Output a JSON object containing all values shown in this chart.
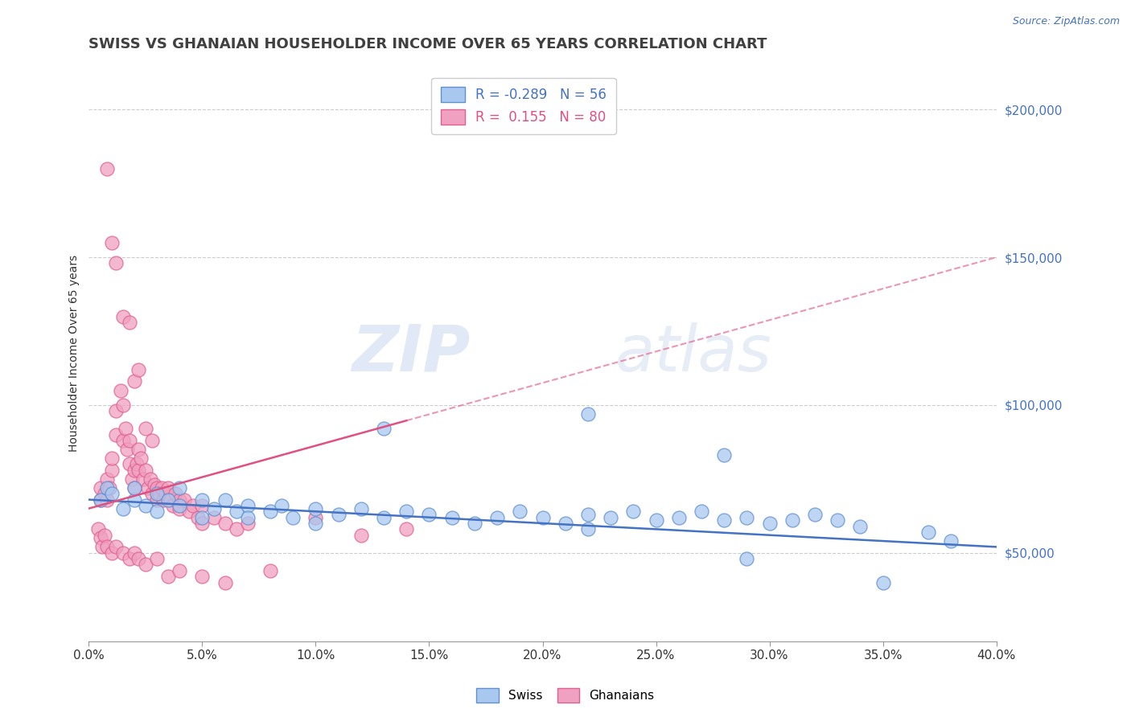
{
  "title": "SWISS VS GHANAIAN HOUSEHOLDER INCOME OVER 65 YEARS CORRELATION CHART",
  "source": "Source: ZipAtlas.com",
  "ylabel": "Householder Income Over 65 years",
  "xlim": [
    0.0,
    0.4
  ],
  "ylim": [
    20000,
    215000
  ],
  "yticks": [
    50000,
    100000,
    150000,
    200000
  ],
  "xtick_labels": [
    "0.0%",
    "5.0%",
    "10.0%",
    "15.0%",
    "20.0%",
    "25.0%",
    "30.0%",
    "35.0%",
    "40.0%"
  ],
  "xticks": [
    0.0,
    0.05,
    0.1,
    0.15,
    0.2,
    0.25,
    0.3,
    0.35,
    0.4
  ],
  "swiss_color": "#a8c8f0",
  "ghanaian_color": "#f0a0c0",
  "swiss_edge_color": "#6090d0",
  "ghanaian_edge_color": "#e06090",
  "swiss_line_color": "#4472c4",
  "ghanaian_line_color": "#e05080",
  "swiss_R": -0.289,
  "swiss_N": 56,
  "ghanaian_R": 0.155,
  "ghanaian_N": 80,
  "watermark_zip": "ZIP",
  "watermark_atlas": "atlas",
  "background_color": "#ffffff",
  "grid_color": "#cccccc",
  "axis_label_color": "#4472c4",
  "title_color": "#404040",
  "title_fontsize": 13,
  "label_fontsize": 10,
  "tick_fontsize": 11,
  "swiss_scatter": [
    [
      0.005,
      68000
    ],
    [
      0.008,
      72000
    ],
    [
      0.01,
      70000
    ],
    [
      0.015,
      65000
    ],
    [
      0.02,
      68000
    ],
    [
      0.02,
      72000
    ],
    [
      0.025,
      66000
    ],
    [
      0.03,
      70000
    ],
    [
      0.03,
      64000
    ],
    [
      0.035,
      68000
    ],
    [
      0.04,
      66000
    ],
    [
      0.04,
      72000
    ],
    [
      0.05,
      68000
    ],
    [
      0.05,
      62000
    ],
    [
      0.055,
      65000
    ],
    [
      0.06,
      68000
    ],
    [
      0.065,
      64000
    ],
    [
      0.07,
      66000
    ],
    [
      0.07,
      62000
    ],
    [
      0.08,
      64000
    ],
    [
      0.085,
      66000
    ],
    [
      0.09,
      62000
    ],
    [
      0.1,
      60000
    ],
    [
      0.1,
      65000
    ],
    [
      0.11,
      63000
    ],
    [
      0.12,
      65000
    ],
    [
      0.13,
      62000
    ],
    [
      0.14,
      64000
    ],
    [
      0.15,
      63000
    ],
    [
      0.16,
      62000
    ],
    [
      0.17,
      60000
    ],
    [
      0.18,
      62000
    ],
    [
      0.19,
      64000
    ],
    [
      0.2,
      62000
    ],
    [
      0.21,
      60000
    ],
    [
      0.22,
      63000
    ],
    [
      0.22,
      58000
    ],
    [
      0.23,
      62000
    ],
    [
      0.24,
      64000
    ],
    [
      0.25,
      61000
    ],
    [
      0.26,
      62000
    ],
    [
      0.27,
      64000
    ],
    [
      0.28,
      61000
    ],
    [
      0.29,
      62000
    ],
    [
      0.3,
      60000
    ],
    [
      0.31,
      61000
    ],
    [
      0.32,
      63000
    ],
    [
      0.33,
      61000
    ],
    [
      0.13,
      92000
    ],
    [
      0.22,
      97000
    ],
    [
      0.28,
      83000
    ],
    [
      0.34,
      59000
    ],
    [
      0.37,
      57000
    ],
    [
      0.38,
      54000
    ],
    [
      0.35,
      40000
    ],
    [
      0.29,
      48000
    ]
  ],
  "ghanaian_scatter": [
    [
      0.005,
      68000
    ],
    [
      0.005,
      72000
    ],
    [
      0.007,
      70000
    ],
    [
      0.008,
      75000
    ],
    [
      0.008,
      68000
    ],
    [
      0.009,
      72000
    ],
    [
      0.01,
      78000
    ],
    [
      0.01,
      82000
    ],
    [
      0.012,
      90000
    ],
    [
      0.012,
      98000
    ],
    [
      0.014,
      105000
    ],
    [
      0.015,
      100000
    ],
    [
      0.015,
      88000
    ],
    [
      0.016,
      92000
    ],
    [
      0.017,
      85000
    ],
    [
      0.018,
      88000
    ],
    [
      0.018,
      80000
    ],
    [
      0.019,
      75000
    ],
    [
      0.02,
      78000
    ],
    [
      0.02,
      72000
    ],
    [
      0.021,
      80000
    ],
    [
      0.022,
      85000
    ],
    [
      0.022,
      78000
    ],
    [
      0.023,
      82000
    ],
    [
      0.024,
      75000
    ],
    [
      0.025,
      78000
    ],
    [
      0.026,
      72000
    ],
    [
      0.027,
      75000
    ],
    [
      0.028,
      70000
    ],
    [
      0.029,
      73000
    ],
    [
      0.03,
      72000
    ],
    [
      0.03,
      68000
    ],
    [
      0.031,
      70000
    ],
    [
      0.032,
      72000
    ],
    [
      0.033,
      68000
    ],
    [
      0.034,
      70000
    ],
    [
      0.035,
      72000
    ],
    [
      0.036,
      68000
    ],
    [
      0.037,
      66000
    ],
    [
      0.038,
      70000
    ],
    [
      0.04,
      68000
    ],
    [
      0.04,
      65000
    ],
    [
      0.042,
      68000
    ],
    [
      0.044,
      64000
    ],
    [
      0.046,
      66000
    ],
    [
      0.048,
      62000
    ],
    [
      0.05,
      66000
    ],
    [
      0.05,
      60000
    ],
    [
      0.055,
      62000
    ],
    [
      0.06,
      60000
    ],
    [
      0.065,
      58000
    ],
    [
      0.07,
      60000
    ],
    [
      0.008,
      180000
    ],
    [
      0.01,
      155000
    ],
    [
      0.012,
      148000
    ],
    [
      0.015,
      130000
    ],
    [
      0.018,
      128000
    ],
    [
      0.02,
      108000
    ],
    [
      0.022,
      112000
    ],
    [
      0.025,
      92000
    ],
    [
      0.028,
      88000
    ],
    [
      0.004,
      58000
    ],
    [
      0.005,
      55000
    ],
    [
      0.006,
      52000
    ],
    [
      0.007,
      56000
    ],
    [
      0.008,
      52000
    ],
    [
      0.01,
      50000
    ],
    [
      0.012,
      52000
    ],
    [
      0.015,
      50000
    ],
    [
      0.018,
      48000
    ],
    [
      0.02,
      50000
    ],
    [
      0.022,
      48000
    ],
    [
      0.025,
      46000
    ],
    [
      0.03,
      48000
    ],
    [
      0.035,
      42000
    ],
    [
      0.04,
      44000
    ],
    [
      0.05,
      42000
    ],
    [
      0.06,
      40000
    ],
    [
      0.08,
      44000
    ],
    [
      0.1,
      62000
    ],
    [
      0.12,
      56000
    ],
    [
      0.14,
      58000
    ]
  ]
}
